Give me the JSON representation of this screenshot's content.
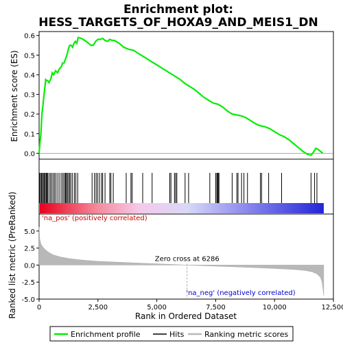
{
  "chart_data": {
    "type": "line",
    "title_line1": "Enrichment plot:",
    "title_line2": "HESS_TARGETS_OF_HOXA9_AND_MEIS1_DN",
    "xlabel": "Rank in Ordered Dataset",
    "xlim": [
      0,
      12500
    ],
    "x_ticks": [
      0,
      2500,
      5000,
      7500,
      10000,
      12500
    ],
    "x_tick_labels": [
      "0",
      "2,500",
      "5,000",
      "7,500",
      "10,000",
      "12,500"
    ],
    "enrichment_panel": {
      "ylabel": "Enrichment score (ES)",
      "ylim": [
        -0.03,
        0.62
      ],
      "y_ticks": [
        0.0,
        0.1,
        0.2,
        0.3,
        0.4,
        0.5,
        0.6
      ],
      "y_tick_labels": [
        "0.0",
        "0.1",
        "0.2",
        "0.3",
        "0.4",
        "0.5",
        "0.6"
      ],
      "series_name": "Enrichment profile",
      "color": "#00ee00",
      "x": [
        0,
        40,
        80,
        120,
        160,
        200,
        240,
        280,
        320,
        360,
        420,
        500,
        560,
        620,
        700,
        780,
        860,
        940,
        1000,
        1060,
        1120,
        1180,
        1240,
        1300,
        1360,
        1420,
        1480,
        1540,
        1600,
        1660,
        1800,
        2000,
        2200,
        2300,
        2400,
        2500,
        2600,
        2700,
        2800,
        2900,
        3000,
        3100,
        3200,
        3400,
        3600,
        3800,
        4000,
        4200,
        4400,
        4600,
        4800,
        5000,
        5200,
        5400,
        5600,
        5800,
        6000,
        6200,
        6400,
        6600,
        6800,
        7000,
        7200,
        7400,
        7600,
        7800,
        8000,
        8200,
        8400,
        8600,
        8800,
        9000,
        9200,
        9400,
        9600,
        9800,
        10000,
        10200,
        10400,
        10600,
        10800,
        11000,
        11200,
        11400,
        11550,
        11650,
        11750,
        11850,
        11950,
        12050
      ],
      "y": [
        0.0,
        0.06,
        0.1,
        0.2,
        0.24,
        0.29,
        0.33,
        0.375,
        0.37,
        0.37,
        0.36,
        0.38,
        0.41,
        0.4,
        0.42,
        0.41,
        0.43,
        0.44,
        0.46,
        0.46,
        0.48,
        0.5,
        0.53,
        0.55,
        0.55,
        0.54,
        0.56,
        0.57,
        0.56,
        0.59,
        0.585,
        0.57,
        0.55,
        0.55,
        0.57,
        0.58,
        0.58,
        0.585,
        0.575,
        0.57,
        0.58,
        0.575,
        0.575,
        0.56,
        0.54,
        0.53,
        0.525,
        0.51,
        0.495,
        0.48,
        0.465,
        0.45,
        0.435,
        0.42,
        0.405,
        0.39,
        0.375,
        0.355,
        0.34,
        0.325,
        0.305,
        0.285,
        0.27,
        0.255,
        0.25,
        0.235,
        0.215,
        0.2,
        0.195,
        0.19,
        0.18,
        0.165,
        0.15,
        0.14,
        0.135,
        0.125,
        0.11,
        0.095,
        0.085,
        0.07,
        0.05,
        0.03,
        0.01,
        -0.005,
        -0.01,
        0.005,
        0.025,
        0.02,
        0.01,
        0.0
      ]
    },
    "hits": [
      20,
      60,
      100,
      140,
      180,
      220,
      260,
      300,
      330,
      360,
      420,
      480,
      540,
      600,
      660,
      720,
      800,
      880,
      960,
      1020,
      1080,
      1120,
      1160,
      1200,
      1250,
      1300,
      1350,
      1420,
      1500,
      1560,
      1640,
      2250,
      2350,
      2420,
      2480,
      2560,
      2650,
      2700,
      2800,
      3000,
      3050,
      3150,
      3700,
      3900,
      3950,
      4400,
      4800,
      5550,
      5600,
      5750,
      5800,
      5850,
      6200,
      6350,
      7250,
      7500,
      7550,
      7580,
      7610,
      7640,
      8200,
      8400,
      8450,
      8600,
      8700,
      8850,
      9400,
      9450,
      9750,
      10300,
      11550,
      11700,
      11800
    ],
    "ranked_panel": {
      "ylabel": "Ranked list metric (PreRanked)",
      "ylim": [
        -5.0,
        7.5
      ],
      "y_ticks": [
        -5.0,
        -2.5,
        0.0,
        2.5,
        5.0
      ],
      "y_tick_labels": [
        "-5.0",
        "-2.5",
        "0.0",
        "2.5",
        "5.0"
      ],
      "series_name": "Ranking metric scores",
      "color": "#b8b8b8",
      "x": [
        0,
        30,
        80,
        150,
        250,
        400,
        600,
        900,
        1300,
        1800,
        2500,
        3500,
        4500,
        5500,
        6286,
        7000,
        8000,
        9000,
        10000,
        10800,
        11300,
        11600,
        11800,
        11950,
        12020,
        12060,
        12090
      ],
      "y": [
        5.6,
        3.8,
        3.1,
        2.7,
        2.3,
        1.9,
        1.5,
        1.2,
        0.95,
        0.75,
        0.55,
        0.4,
        0.25,
        0.12,
        0.0,
        -0.1,
        -0.22,
        -0.35,
        -0.5,
        -0.65,
        -0.8,
        -1.0,
        -1.3,
        -1.8,
        -2.5,
        -3.6,
        -4.5
      ]
    },
    "zero_cross_label": "Zero cross at 6286",
    "zero_cross_rank": 6286,
    "pos_label": "'na_pos' (positively correlated)",
    "neg_label": "'na_neg' (negatively correlated)",
    "legend": [
      {
        "label": "Enrichment profile",
        "color": "#00ee00"
      },
      {
        "label": "Hits",
        "color": "#000000"
      },
      {
        "label": "Ranking metric scores",
        "color": "#b8b8b8"
      }
    ],
    "gradient_colors": [
      "#e8001e",
      "#f38a9a",
      "#f6c9ea",
      "#d8d8f8",
      "#8d8cee",
      "#2424d8"
    ]
  }
}
